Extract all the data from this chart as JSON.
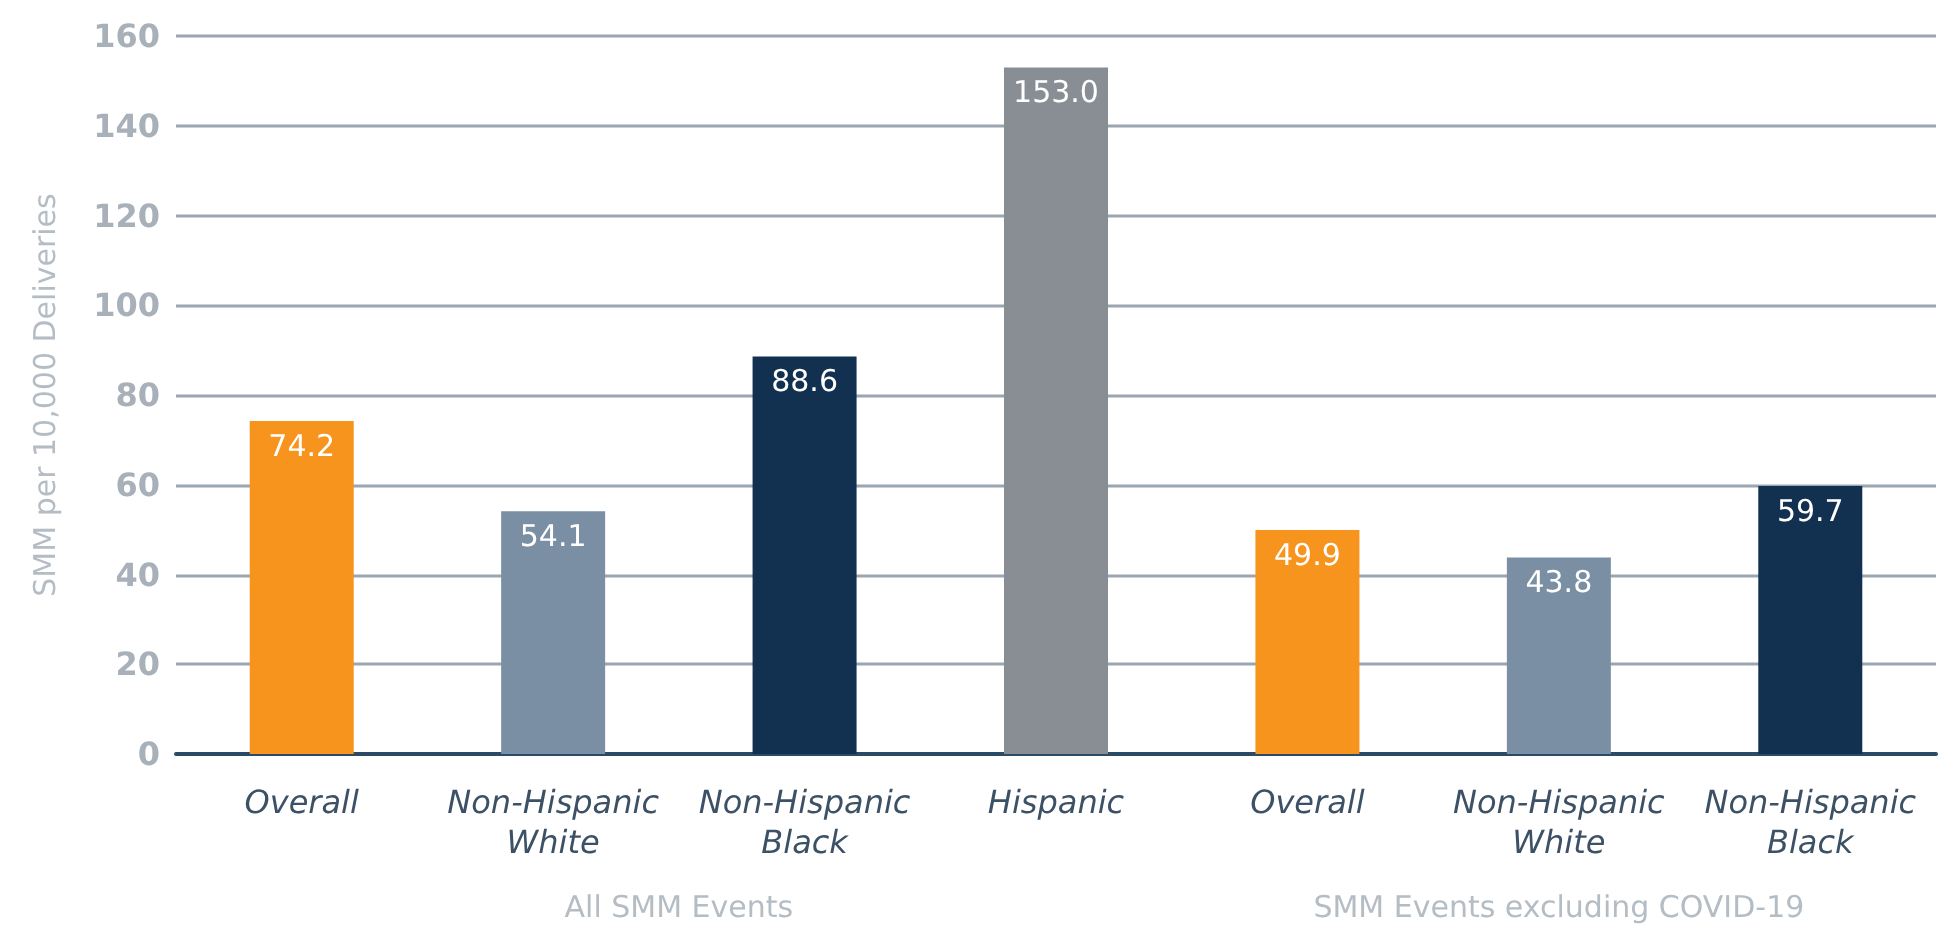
{
  "chart_data": {
    "type": "bar",
    "ylabel": "SMM per 10,000 Deliveries",
    "categories": [
      "Overall",
      "Non-Hispanic\nWhite",
      "Non-Hispanic\nBlack",
      "Hispanic",
      "Overall",
      "Non-Hispanic\nWhite",
      "Non-Hispanic\nBlack"
    ],
    "values": [
      74.2,
      54.1,
      88.6,
      153.0,
      49.9,
      43.8,
      59.7
    ],
    "colors": [
      "#f7941d",
      "#7a8fa3",
      "#12304f",
      "#898d94",
      "#f7941d",
      "#7a8fa3",
      "#12304f"
    ],
    "value_labels": [
      "74.2",
      "54.1",
      "88.6",
      "153.0",
      "49.9",
      "43.8",
      "59.7"
    ],
    "ylim": [
      0,
      160
    ],
    "yticks": [
      0,
      20,
      40,
      60,
      80,
      100,
      120,
      140,
      160
    ],
    "grid": "y",
    "annotations": [
      "All SMM Events",
      "SMM Events excluding COVID-19"
    ]
  }
}
